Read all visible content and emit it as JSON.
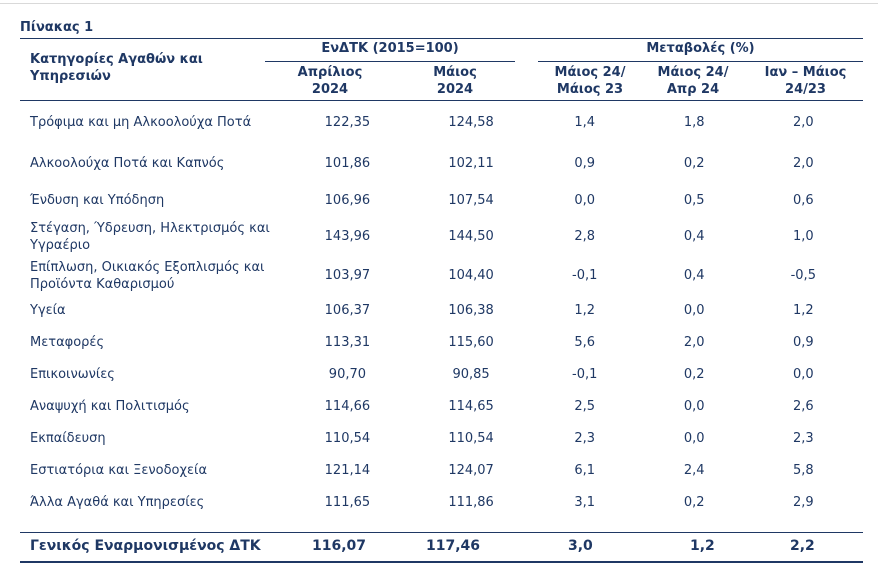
{
  "table_title": "Πίνακας 1",
  "header": {
    "category": "Κατηγορίες Αγαθών και Υπηρεσιών",
    "hicp_group": "ΕνΔΤΚ (2015=100)",
    "change_group": "Μεταβολές (%)",
    "col_apr_2024": "Απρίλιος 2024",
    "col_may_2024": "Μάιος 2024",
    "col_may24_may23": "Μάιος 24/ Μάιος 23",
    "col_may24_apr24": "Μάιος 24/ Απρ 24",
    "col_jan_may": "Ιαν – Μάιος 24/23"
  },
  "rows": [
    {
      "category": "Τρόφιμα και μη Αλκοολούχα Ποτά",
      "apr": "122,35",
      "may": "124,58",
      "yoy": "1,4",
      "mom": "1,8",
      "ytd": "2,0"
    },
    {
      "category": "Αλκοολούχα Ποτά και Καπνός",
      "apr": "101,86",
      "may": "102,11",
      "yoy": "0,9",
      "mom": "0,2",
      "ytd": "2,0"
    },
    {
      "category": "Ένδυση και Υπόδηση",
      "apr": "106,96",
      "may": "107,54",
      "yoy": "0,0",
      "mom": "0,5",
      "ytd": "0,6"
    },
    {
      "category": "Στέγαση, Ύδρευση, Ηλεκτρισμός και Υγραέριο",
      "apr": "143,96",
      "may": "144,50",
      "yoy": "2,8",
      "mom": "0,4",
      "ytd": "1,0"
    },
    {
      "category": "Επίπλωση, Οικιακός Εξοπλισμός και Προϊόντα Καθαρισμού",
      "apr": "103,97",
      "may": "104,40",
      "yoy": "-0,1",
      "mom": "0,4",
      "ytd": "-0,5"
    },
    {
      "category": "Υγεία",
      "apr": "106,37",
      "may": "106,38",
      "yoy": "1,2",
      "mom": "0,0",
      "ytd": "1,2"
    },
    {
      "category": "Μεταφορές",
      "apr": "113,31",
      "may": "115,60",
      "yoy": "5,6",
      "mom": "2,0",
      "ytd": "0,9"
    },
    {
      "category": "Επικοινωνίες",
      "apr": "90,70",
      "may": "90,85",
      "yoy": "-0,1",
      "mom": "0,2",
      "ytd": "0,0"
    },
    {
      "category": "Αναψυχή και Πολιτισμός",
      "apr": "114,66",
      "may": "114,65",
      "yoy": "2,5",
      "mom": "0,0",
      "ytd": "2,6"
    },
    {
      "category": "Εκπαίδευση",
      "apr": "110,54",
      "may": "110,54",
      "yoy": "2,3",
      "mom": "0,0",
      "ytd": "2,3"
    },
    {
      "category": "Εστιατόρια και Ξενοδοχεία",
      "apr": "121,14",
      "may": "124,07",
      "yoy": "6,1",
      "mom": "2,4",
      "ytd": "5,8"
    },
    {
      "category": "Άλλα Αγαθά και Υπηρεσίες",
      "apr": "111,65",
      "may": "111,86",
      "yoy": "3,1",
      "mom": "0,2",
      "ytd": "2,9"
    }
  ],
  "total": {
    "category": "Γενικός Εναρμονισμένος ΔΤΚ",
    "apr": "116,07",
    "may": "117,46",
    "yoy": "3,0",
    "mom": "1,2",
    "ytd": "2,2"
  },
  "colors": {
    "text": "#1f3864",
    "rule": "#1f3864"
  }
}
